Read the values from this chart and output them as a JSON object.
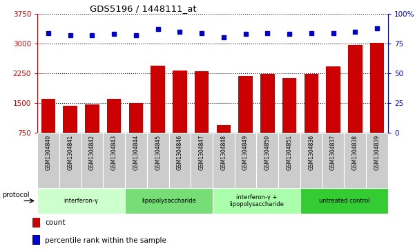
{
  "title": "GDS5196 / 1448111_at",
  "samples": [
    "GSM1304840",
    "GSM1304841",
    "GSM1304842",
    "GSM1304843",
    "GSM1304844",
    "GSM1304845",
    "GSM1304846",
    "GSM1304847",
    "GSM1304848",
    "GSM1304849",
    "GSM1304850",
    "GSM1304851",
    "GSM1304836",
    "GSM1304837",
    "GSM1304838",
    "GSM1304839"
  ],
  "counts": [
    1610,
    1430,
    1470,
    1610,
    1500,
    2450,
    2320,
    2300,
    950,
    2180,
    2230,
    2130,
    2230,
    2420,
    2960,
    3020
  ],
  "percentile_ranks": [
    84,
    82,
    82,
    83,
    82,
    87,
    85,
    84,
    80,
    83,
    84,
    83,
    84,
    84,
    85,
    88
  ],
  "bar_color": "#cc0000",
  "dot_color": "#0000cc",
  "ylim_left": [
    750,
    3750
  ],
  "ylim_right": [
    0,
    100
  ],
  "yticks_left": [
    750,
    1500,
    2250,
    3000,
    3750
  ],
  "yticks_right": [
    0,
    25,
    50,
    75,
    100
  ],
  "ytick_labels_right": [
    "0",
    "25",
    "50",
    "75",
    "100%"
  ],
  "groups": [
    {
      "label": "interferon-γ",
      "start": 0,
      "end": 4,
      "color": "#ccffcc"
    },
    {
      "label": "lipopolysaccharide",
      "start": 4,
      "end": 8,
      "color": "#77dd77"
    },
    {
      "label": "interferon-γ +\nlipopolysaccharide",
      "start": 8,
      "end": 12,
      "color": "#aaffaa"
    },
    {
      "label": "untreated control",
      "start": 12,
      "end": 16,
      "color": "#33cc33"
    }
  ],
  "protocol_label": "protocol",
  "legend_count_label": "count",
  "legend_percentile_label": "percentile rank within the sample",
  "background_color": "#ffffff",
  "plot_bg_color": "#ffffff",
  "left_axis_color": "#cc0000",
  "right_axis_color": "#0000cc",
  "label_box_color": "#cccccc",
  "group_colors": [
    "#ccffcc",
    "#77dd77",
    "#aaffaa",
    "#33cc33"
  ]
}
